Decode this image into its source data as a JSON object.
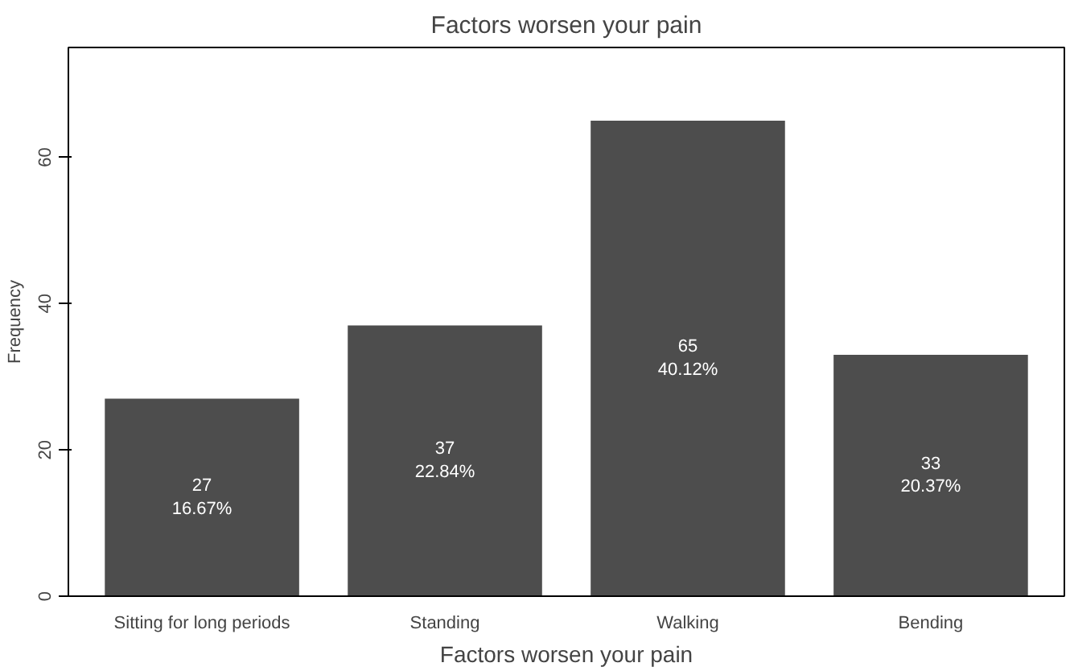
{
  "chart_data": {
    "type": "bar",
    "title": "Factors worsen your pain",
    "xlabel": "Factors worsen your pain",
    "ylabel": "Frequency",
    "categories": [
      "Sitting for long periods",
      "Standing",
      "Walking",
      "Bending"
    ],
    "values": [
      27,
      37,
      65,
      33
    ],
    "value_labels": [
      "27\n16.67%",
      "37\n22.84%",
      "65\n40.12%",
      "33\n20.37%"
    ],
    "color": "#4d4d4d",
    "ylim": [
      0,
      75
    ],
    "yticks": [
      0,
      20,
      40,
      60
    ]
  }
}
